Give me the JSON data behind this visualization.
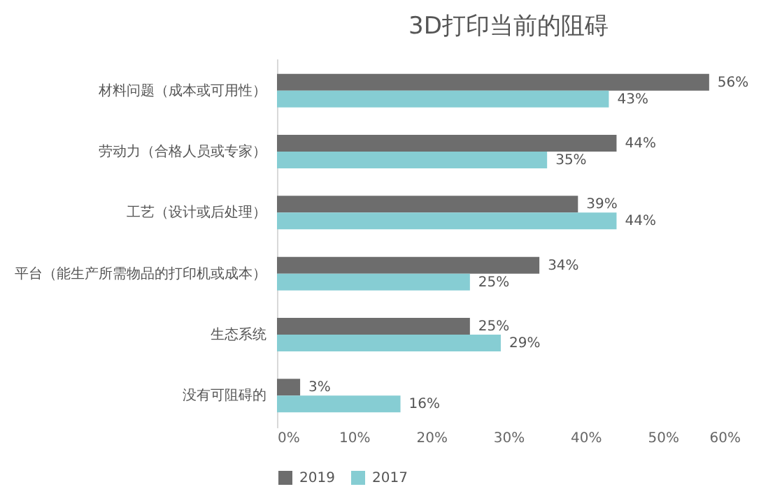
{
  "chart_data": {
    "type": "bar",
    "orientation": "horizontal",
    "title": "3D打印当前的阻碍",
    "categories": [
      "材料问题（成本或可用性）",
      "劳动力（合格人员或专家）",
      "工艺（设计或后处理）",
      "平台（能生产所需物品的打印机或成本）",
      "生态系统",
      "没有可阻碍的"
    ],
    "series": [
      {
        "name": "2019",
        "color": "#6d6d6d",
        "values": [
          56,
          44,
          39,
          34,
          25,
          3
        ],
        "value_labels": [
          "56%",
          "44%",
          "39%",
          "34%",
          "25%",
          "3%"
        ]
      },
      {
        "name": "2017",
        "color": "#86cdd3",
        "values": [
          43,
          35,
          44,
          25,
          29,
          16
        ],
        "value_labels": [
          "43%",
          "35%",
          "44%",
          "25%",
          "29%",
          "16%"
        ]
      }
    ],
    "xlim": [
      0,
      60
    ],
    "xticks": [
      {
        "value": 0,
        "label": "0%"
      },
      {
        "value": 10,
        "label": "10%"
      },
      {
        "value": 20,
        "label": "20%"
      },
      {
        "value": 30,
        "label": "30%"
      },
      {
        "value": 40,
        "label": "40%"
      },
      {
        "value": 50,
        "label": "50%"
      },
      {
        "value": 60,
        "label": "60%"
      }
    ],
    "grid": false,
    "legend": "bottom"
  }
}
